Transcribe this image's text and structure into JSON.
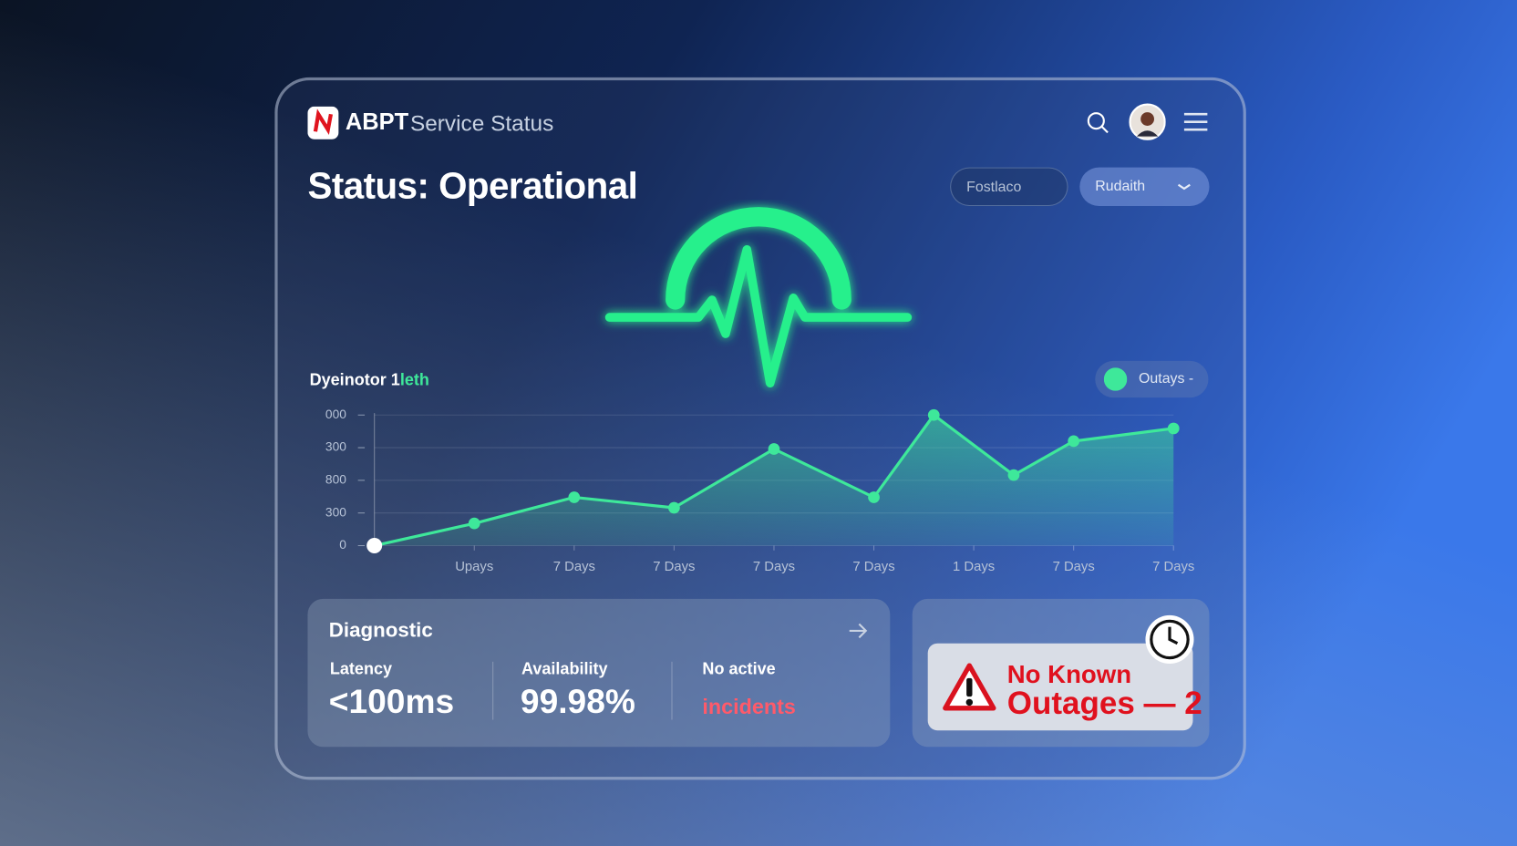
{
  "header": {
    "brand": "ABPT",
    "product": "Service Status"
  },
  "status_title": "Status: Operational",
  "buttons": [
    "Fostlaco",
    "Rudaith"
  ],
  "chart": {
    "type": "line",
    "title": "Dyeinotor 1",
    "title_highlight": "leth",
    "x": [
      0,
      1,
      2,
      3,
      4,
      5,
      5.6,
      6.4,
      7,
      8
    ],
    "series": [
      {
        "name": "Outays -",
        "color": "#3ee89a",
        "values": [
          0,
          68,
          148,
          116,
          296,
          148,
          400,
          216,
          320,
          359
        ]
      }
    ],
    "xlim": [
      0,
      8
    ],
    "xticks": [
      {
        "value": 1,
        "label": "Upays"
      },
      {
        "value": 2,
        "label": "7 Days"
      },
      {
        "value": 3,
        "label": "7 Days"
      },
      {
        "value": 4,
        "label": "7 Days"
      },
      {
        "value": 5,
        "label": "7 Days"
      },
      {
        "value": 6,
        "label": "1 Days"
      },
      {
        "value": 7,
        "label": "7 Days"
      },
      {
        "value": 8,
        "label": "7 Days"
      }
    ],
    "ylim": [
      0,
      400
    ],
    "yticks": [
      0,
      {
        "value": 100,
        "label": "300"
      },
      {
        "value": 200,
        "label": "800"
      },
      {
        "value": 300,
        "label": "300"
      },
      {
        "value": 400,
        "label": "000"
      }
    ],
    "grid": true
  },
  "diagnostic": {
    "title": "Diagnostic",
    "metrics": [
      {
        "label": "Latency",
        "value": "<100ms"
      },
      {
        "label": "Availability",
        "value": "99.98%"
      },
      {
        "label": "No active",
        "value": "incidents"
      }
    ]
  },
  "alert": {
    "lines": [
      "No Known",
      "Outages — 2"
    ]
  }
}
